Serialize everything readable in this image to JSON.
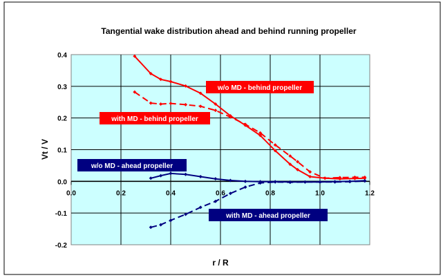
{
  "chart_data": {
    "type": "line",
    "title": "Tangential wake distribution ahead and behind running propeller",
    "xlabel": "r / R",
    "ylabel": "Vt / V",
    "xlim": [
      0,
      1.2
    ],
    "ylim": [
      -0.2,
      0.4
    ],
    "xticks": [
      "0.0",
      "0.2",
      "0.4",
      "0.6",
      "0.8",
      "1.0",
      "1.2"
    ],
    "yticks": [
      "0.4",
      "0.3",
      "0.2",
      "0.1",
      "0.0",
      "-0.1",
      "-0.2"
    ],
    "grid": true,
    "plot_background": "#ccffff",
    "series": [
      {
        "name": "w/o MD - behind propeller",
        "color": "#ff0000",
        "line": "solid",
        "x": [
          0.255,
          0.32,
          0.36,
          0.4,
          0.46,
          0.52,
          0.58,
          0.64,
          0.7,
          0.76,
          0.82,
          0.88,
          0.91,
          0.96,
          1.02,
          1.08,
          1.14,
          1.18
        ],
        "y": [
          0.395,
          0.34,
          0.322,
          0.315,
          0.301,
          0.278,
          0.244,
          0.207,
          0.177,
          0.145,
          0.097,
          0.054,
          0.037,
          0.015,
          0.01,
          0.008,
          0.009,
          0.01
        ]
      },
      {
        "name": "with MD - behind propeller",
        "color": "#ff0000",
        "line": "dashed",
        "x": [
          0.255,
          0.32,
          0.36,
          0.4,
          0.46,
          0.52,
          0.58,
          0.64,
          0.7,
          0.76,
          0.82,
          0.88,
          0.91,
          0.96,
          1.02,
          1.08,
          1.14,
          1.18
        ],
        "y": [
          0.282,
          0.247,
          0.244,
          0.246,
          0.242,
          0.237,
          0.224,
          0.203,
          0.18,
          0.153,
          0.115,
          0.08,
          0.062,
          0.03,
          0.01,
          0.012,
          0.013,
          0.013
        ]
      },
      {
        "name": "w/o MD - ahead propeller",
        "color": "#000080",
        "line": "solid",
        "x": [
          0.32,
          0.36,
          0.4,
          0.46,
          0.52,
          0.58,
          0.64,
          0.7,
          0.76,
          0.82,
          0.88,
          0.94,
          1.0,
          1.06,
          1.12,
          1.18
        ],
        "y": [
          0.01,
          0.018,
          0.025,
          0.022,
          0.015,
          0.008,
          0.003,
          0.0,
          -0.001,
          -0.001,
          -0.002,
          -0.002,
          -0.002,
          -0.001,
          0.0,
          0.002
        ]
      },
      {
        "name": "with MD - ahead propeller",
        "color": "#000080",
        "line": "dashed",
        "x": [
          0.32,
          0.36,
          0.4,
          0.46,
          0.52,
          0.58,
          0.64,
          0.7,
          0.76,
          0.82,
          0.88,
          0.94,
          1.0,
          1.06,
          1.12,
          1.18
        ],
        "y": [
          -0.145,
          -0.137,
          -0.123,
          -0.104,
          -0.082,
          -0.063,
          -0.038,
          -0.018,
          -0.005,
          -0.002,
          -0.003,
          -0.002,
          -0.002,
          -0.002,
          -0.001,
          0.001
        ]
      }
    ],
    "annotations": [
      {
        "text": "w/o MD - behind propeller",
        "series": 0,
        "fill": "#ff0000",
        "text_color": "#ffffff"
      },
      {
        "text": "with MD - behind propeller",
        "series": 1,
        "fill": "#ff0000",
        "text_color": "#ffffff"
      },
      {
        "text": "w/o MD - ahead propeller",
        "series": 2,
        "fill": "#000080",
        "text_color": "#ffffff"
      },
      {
        "text": "with MD - ahead propeller",
        "series": 3,
        "fill": "#000080",
        "text_color": "#ffffff"
      }
    ]
  }
}
